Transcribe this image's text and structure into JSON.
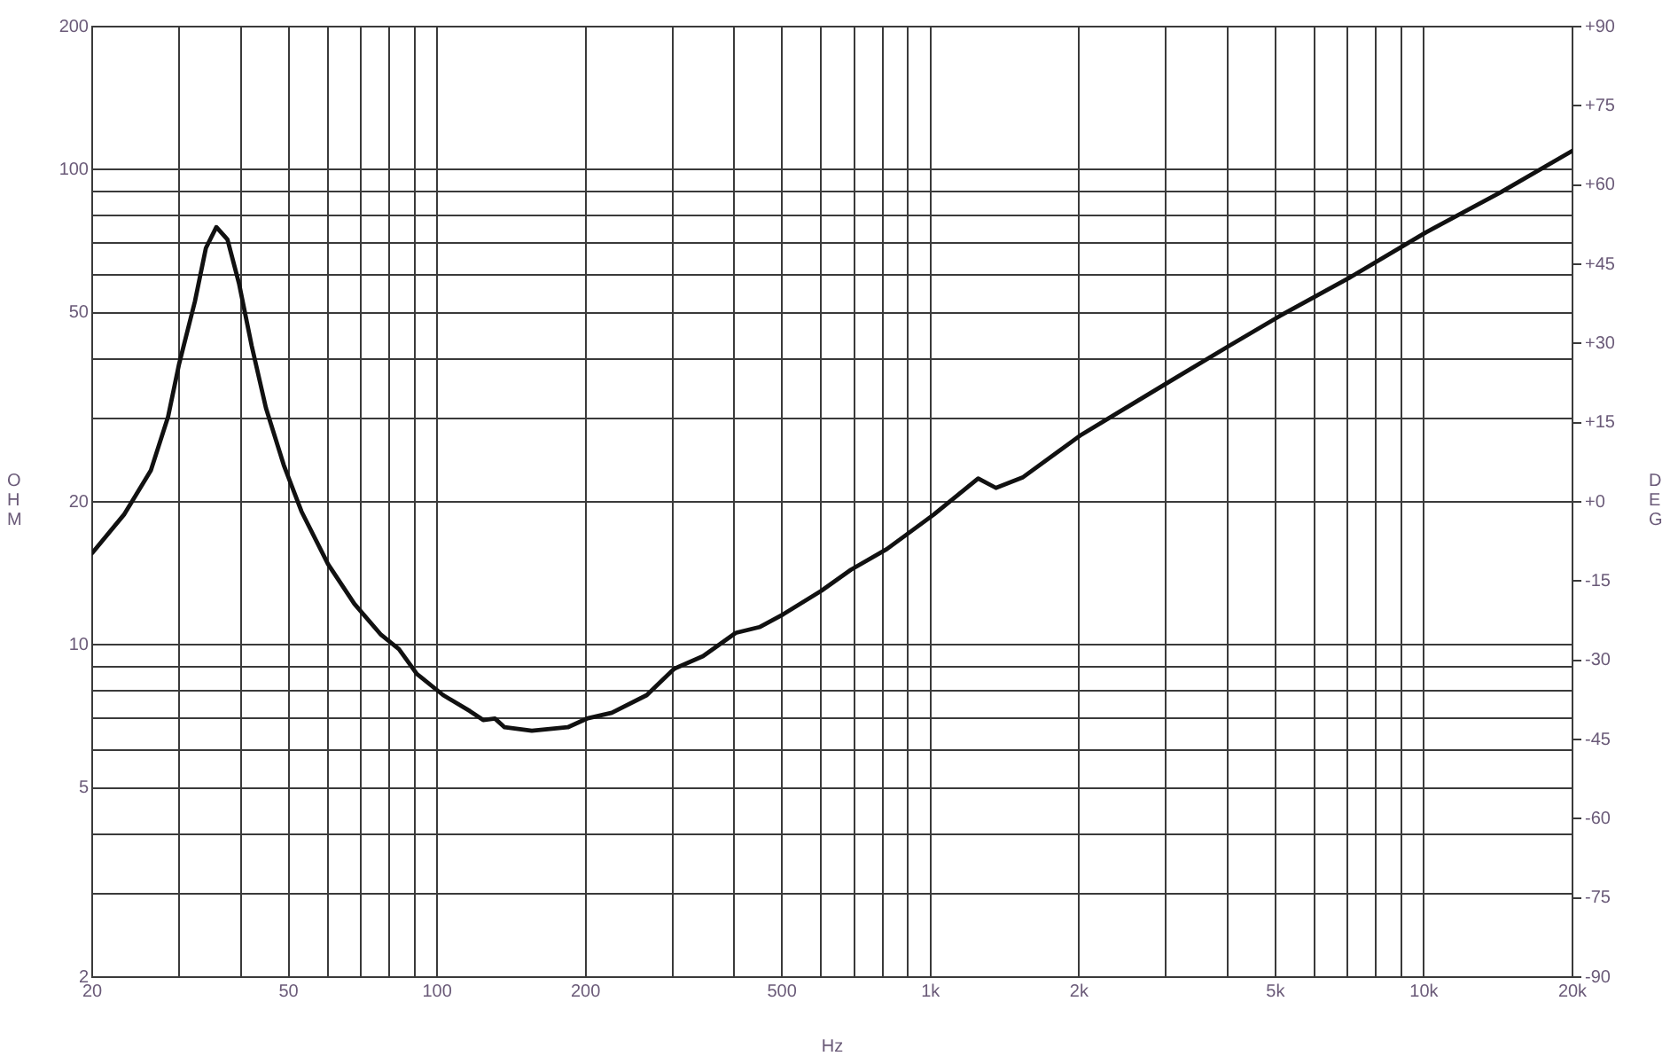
{
  "chart_data": {
    "type": "line",
    "xlabel": "Hz",
    "ylabel": "OHM",
    "y2label": "DEG",
    "log": "xy",
    "grid": true,
    "legend": false,
    "marker": "none",
    "line_style": "solid",
    "x": [
      20,
      23.2,
      26.3,
      28.5,
      30,
      32.3,
      34,
      35.7,
      37.6,
      39.7,
      42.1,
      45,
      48.9,
      53.1,
      60.1,
      68,
      77,
      83.7,
      91,
      102.9,
      116.5,
      124,
      131,
      137,
      155.6,
      184,
      202,
      226,
      266,
      302,
      346,
      403,
      450,
      503,
      601,
      690,
      815,
      1015,
      1249,
      1357,
      1536,
      2023,
      3060,
      4030,
      5100,
      7055,
      10090,
      14330,
      20000
    ],
    "series": [
      {
        "color": "#111111",
        "values": [
          15.6,
          18.8,
          23.3,
          30.2,
          39,
          52.8,
          68.4,
          75.7,
          71.3,
          57.5,
          42.6,
          31.5,
          23.9,
          19.1,
          14.8,
          12.2,
          10.5,
          9.8,
          8.69,
          7.84,
          7.26,
          6.95,
          7.0,
          6.71,
          6.6,
          6.71,
          7.01,
          7.2,
          7.84,
          8.9,
          9.47,
          10.6,
          10.9,
          11.6,
          13.0,
          14.4,
          15.9,
          18.8,
          22.4,
          21.4,
          22.5,
          27.7,
          35.9,
          42.6,
          49.2,
          59.2,
          73.8,
          89.7,
          109.6
        ]
      }
    ],
    "xlim": [
      20,
      20000
    ],
    "xticks": [
      20,
      {
        "value": 30,
        "label": null
      },
      {
        "value": 40,
        "label": null
      },
      50,
      {
        "value": 60,
        "label": null
      },
      {
        "value": 70,
        "label": null
      },
      {
        "value": 80,
        "label": null
      },
      {
        "value": 90,
        "label": null
      },
      100,
      200,
      {
        "value": 300,
        "label": null
      },
      {
        "value": 400,
        "label": null
      },
      500,
      {
        "value": 600,
        "label": null
      },
      {
        "value": 700,
        "label": null
      },
      {
        "value": 800,
        "label": null
      },
      {
        "value": 900,
        "label": null
      },
      {
        "value": 1000,
        "label": "1k"
      },
      {
        "value": 2000,
        "label": "2k"
      },
      {
        "value": 3000,
        "label": null
      },
      {
        "value": 4000,
        "label": null
      },
      {
        "value": 5000,
        "label": "5k"
      },
      {
        "value": 6000,
        "label": null
      },
      {
        "value": 7000,
        "label": null
      },
      {
        "value": 8000,
        "label": null
      },
      {
        "value": 9000,
        "label": null
      },
      {
        "value": 10000,
        "label": "10k"
      },
      {
        "value": 20000,
        "label": "20k"
      }
    ],
    "ylim": [
      2,
      200
    ],
    "yticks": [
      2,
      {
        "value": 3,
        "label": null
      },
      {
        "value": 4,
        "label": null
      },
      5,
      {
        "value": 6,
        "label": null
      },
      {
        "value": 7,
        "label": null
      },
      {
        "value": 8,
        "label": null
      },
      {
        "value": 9,
        "label": null
      },
      10,
      20,
      {
        "value": 30,
        "label": null
      },
      {
        "value": 40,
        "label": null
      },
      50,
      {
        "value": 60,
        "label": null
      },
      {
        "value": 70,
        "label": null
      },
      {
        "value": 80,
        "label": null
      },
      {
        "value": 90,
        "label": null
      },
      100,
      200
    ],
    "y2lim": [
      -90,
      90
    ],
    "y2ticks": [
      {
        "value": -90,
        "label": "-90"
      },
      {
        "value": -75,
        "label": "-75"
      },
      {
        "value": -60,
        "label": "-60"
      },
      {
        "value": -45,
        "label": "-45"
      },
      {
        "value": -30,
        "label": "-30"
      },
      {
        "value": -15,
        "label": "-15"
      },
      {
        "value": 0,
        "label": "+0"
      },
      {
        "value": 15,
        "label": "+15"
      },
      {
        "value": 30,
        "label": "+30"
      },
      {
        "value": 45,
        "label": "+45"
      },
      {
        "value": 60,
        "label": "+60"
      },
      {
        "value": 75,
        "label": "+75"
      },
      {
        "value": 90,
        "label": "+90"
      }
    ]
  }
}
